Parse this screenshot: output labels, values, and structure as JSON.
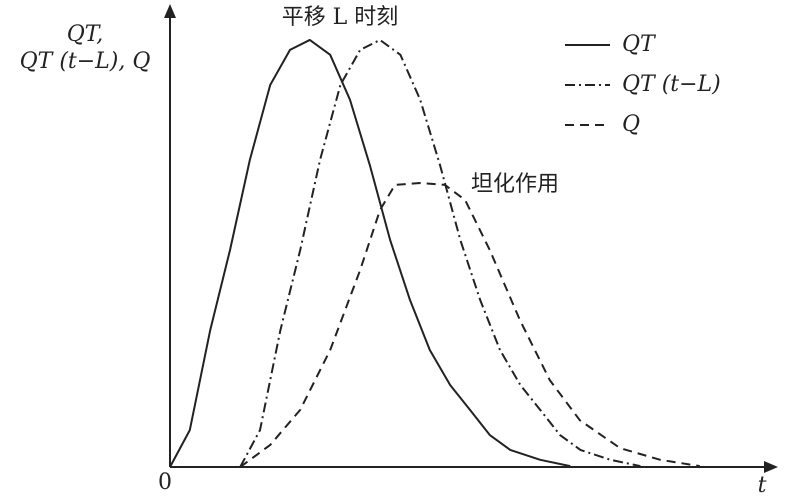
{
  "chart_data": {
    "type": "line",
    "title": "平移 L 时刻",
    "annotations": [
      "坦化作用"
    ],
    "y_label": [
      "QT,",
      "QT (t−L), Q"
    ],
    "x_label": "t",
    "xlim": [
      0,
      100
    ],
    "ylim": [
      0,
      100
    ],
    "xticks": [
      0
    ],
    "legend": "top-right",
    "series": [
      {
        "name": "QT",
        "color": "#222222",
        "dash": "solid",
        "x": [
          0,
          3.3,
          6.7,
          10,
          13.3,
          16.7,
          20,
          23.3,
          26.7,
          30,
          33.3,
          36.7,
          40,
          43.3,
          46.7,
          50,
          53.3,
          56.7,
          61.7,
          66.7
        ],
        "values": [
          0,
          8.2,
          30.4,
          48.2,
          68.2,
          84.9,
          92.7,
          94.9,
          91.6,
          81.6,
          67.1,
          50.4,
          37.1,
          26,
          18.2,
          12.7,
          7.1,
          3.8,
          1.6,
          0.2
        ]
      },
      {
        "name": "QT (t−L)",
        "color": "#222222",
        "dash": "dashdot",
        "x": [
          11.7,
          15,
          18.4,
          21.7,
          25,
          28.4,
          31.7,
          35,
          38.4,
          41.7,
          45,
          48.4,
          51.7,
          55,
          58.4,
          61.7,
          65,
          68.4,
          73.4,
          78.4
        ],
        "values": [
          0,
          8.2,
          30.4,
          48.2,
          68.2,
          84.9,
          92.7,
          94.9,
          91.6,
          81.6,
          67.1,
          50.4,
          37.1,
          26,
          18.2,
          12.7,
          7.1,
          3.8,
          1.6,
          0.2
        ]
      },
      {
        "name": "Q",
        "color": "#222222",
        "dash": "dashed",
        "x": [
          11.7,
          16.7,
          21.7,
          26.7,
          31.7,
          35,
          37.5,
          41.7,
          45.8,
          49.2,
          53.3,
          58.3,
          63.3,
          68.3,
          75,
          81.7,
          88.3
        ],
        "values": [
          0,
          4.9,
          12.7,
          26,
          43.8,
          57.1,
          62.7,
          63.1,
          62.7,
          59.3,
          48.2,
          32.7,
          19.3,
          10.4,
          4.2,
          1.6,
          0.2
        ]
      }
    ]
  }
}
